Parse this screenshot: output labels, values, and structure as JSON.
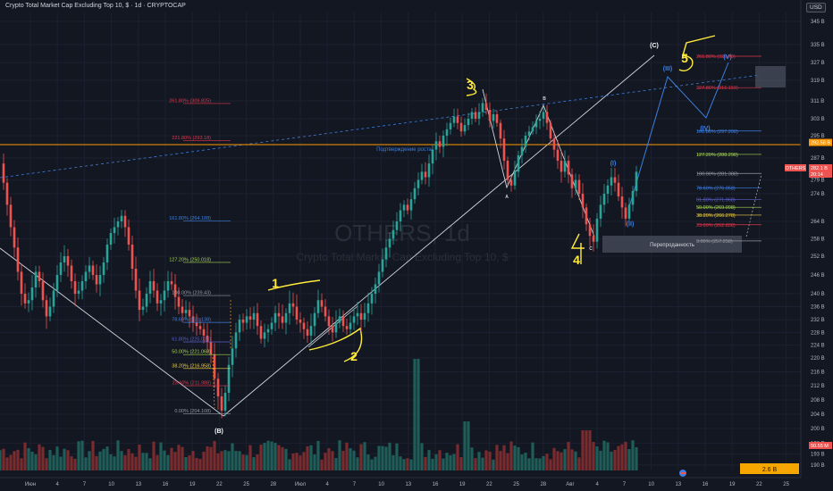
{
  "header": {
    "title": "Crypto Total Market Cap Excluding Top 10, $ · 1d · CRYPTOCAP",
    "currency": "USD"
  },
  "watermark": {
    "ticker": "OTHERS, 1d",
    "name": "Crypto Total Market Cap Excluding Top 10, $"
  },
  "colors": {
    "background": "#131722",
    "up": "#26a69a",
    "down": "#ef5350",
    "wave_blue": "#3d7fe0",
    "fib_red": "#e0364a",
    "fib_orange": "#ff9800",
    "fib_green": "#a5d64f",
    "accent_box": "#ffc107"
  },
  "chart_data": {
    "type": "candlestick",
    "price_axis": {
      "ticks": [
        "345 B",
        "335 B",
        "327 B",
        "319 B",
        "311 B",
        "303 B",
        "295 B",
        "287 B",
        "279 B",
        "274 B",
        "264 B",
        "258 B",
        "252 B",
        "246 B",
        "240 B",
        "236 B",
        "232 B",
        "228 B",
        "224 B",
        "220 B",
        "216 B",
        "212 B",
        "208 B",
        "204 B",
        "200 B",
        "196 B",
        "193 B",
        "190 B"
      ],
      "badges": [
        {
          "label": "292.58 B",
          "value": 292.58,
          "color": "#ff9800"
        },
        {
          "label": "OTHERS",
          "value": 282.5,
          "color": "#ef5350"
        },
        {
          "label": "282.1 B",
          "value": 282.1,
          "color": "#ef5350"
        },
        {
          "label": "20:14",
          "value": 281.4,
          "color": "#ef5350"
        }
      ]
    },
    "time_axis": {
      "ticks": [
        "Июн",
        "4",
        "7",
        "10",
        "13",
        "16",
        "19",
        "22",
        "25",
        "28",
        "Июл",
        "4",
        "7",
        "10",
        "13",
        "16",
        "19",
        "22",
        "25",
        "28",
        "Авг",
        "4",
        "7",
        "10",
        "13",
        "16",
        "19",
        "22",
        "25"
      ]
    },
    "volume": {
      "last": "50.55 M",
      "scale_label": "2.6 B"
    },
    "wave_labels": [
      "(B)",
      "(C)",
      "(I)",
      "(II)",
      "(III)",
      "(IV)",
      "(V)",
      "A",
      "B",
      "C",
      "1",
      "2",
      "3",
      "4",
      "5"
    ],
    "annotations": {
      "growth_confirm": "Подтверждение роста",
      "oversold": "Перепроданность"
    },
    "fib_left": [
      {
        "label": "261.80% (309.825)",
        "value": 309.825,
        "color": "fib_red"
      },
      {
        "label": "221.80% (293.18)",
        "value": 293.18,
        "color": "fib_red"
      },
      {
        "label": "161.80% (264.188)",
        "value": 264.188,
        "color": "wave_blue"
      },
      {
        "label": "127.20% (250.018)",
        "value": 250.018,
        "color": "fib_green"
      },
      {
        "label": "100.00% (239.43)",
        "value": 239.43,
        "color": "#9598a1"
      },
      {
        "label": "78.60% (231.138)",
        "value": 231.138,
        "color": "wave_blue"
      },
      {
        "label": "61.80% (225.028)",
        "value": 225.028,
        "color": "#5b5fc7"
      },
      {
        "label": "50.00% (221.068)",
        "value": 221.068,
        "color": "fib_green"
      },
      {
        "label": "38.20% (216.958)",
        "value": 216.958,
        "color": "#f0d040"
      },
      {
        "label": "23.60% (211.988)",
        "value": 211.988,
        "color": "fib_red"
      },
      {
        "label": "0.00% (204.108)",
        "value": 204.108,
        "color": "#9598a1"
      }
    ],
    "fib_right": [
      {
        "label": "261.80% (329.79)",
        "value": 329.79,
        "color": "fib_red"
      },
      {
        "label": "227.80% (316.159)",
        "value": 316.159,
        "color": "fib_red"
      },
      {
        "label": "161.80% (297.208)",
        "value": 297.208,
        "color": "wave_blue"
      },
      {
        "label": "127.20% (288.298)",
        "value": 288.298,
        "color": "fib_green"
      },
      {
        "label": "100.00% (281.388)",
        "value": 281.388,
        "color": "#9598a1"
      },
      {
        "label": "78.60% (276.058)",
        "value": 276.058,
        "color": "wave_blue"
      },
      {
        "label": "61.80% (271.968)",
        "value": 271.968,
        "color": "#5b5fc7"
      },
      {
        "label": "50.00% (269.098)",
        "value": 269.098,
        "color": "fib_green"
      },
      {
        "label": "38.20% (266.278)",
        "value": 266.278,
        "color": "#f0d040"
      },
      {
        "label": "23.60% (262.838)",
        "value": 262.838,
        "color": "fib_red"
      },
      {
        "label": "0.00% (257.258)",
        "value": 257.258,
        "color": "#9598a1"
      }
    ],
    "price_path": [
      [
        0,
        285
      ],
      [
        4,
        278
      ],
      [
        8,
        270
      ],
      [
        12,
        262
      ],
      [
        16,
        255
      ],
      [
        20,
        247
      ],
      [
        24,
        240
      ],
      [
        28,
        237
      ],
      [
        32,
        238
      ],
      [
        36,
        242
      ],
      [
        40,
        247
      ],
      [
        44,
        244
      ],
      [
        48,
        238
      ],
      [
        52,
        233
      ],
      [
        56,
        236
      ],
      [
        60,
        241
      ],
      [
        64,
        246
      ],
      [
        68,
        250
      ],
      [
        72,
        252
      ],
      [
        76,
        249
      ],
      [
        80,
        244
      ],
      [
        84,
        240
      ],
      [
        88,
        241
      ],
      [
        92,
        244
      ],
      [
        96,
        247
      ],
      [
        100,
        249
      ],
      [
        104,
        246
      ],
      [
        108,
        243
      ],
      [
        112,
        246
      ],
      [
        116,
        250
      ],
      [
        120,
        256
      ],
      [
        124,
        260
      ],
      [
        128,
        262
      ],
      [
        132,
        264
      ],
      [
        136,
        266
      ],
      [
        140,
        262
      ],
      [
        144,
        256
      ],
      [
        148,
        248
      ],
      [
        152,
        241
      ],
      [
        156,
        235
      ],
      [
        160,
        236
      ],
      [
        164,
        240
      ],
      [
        168,
        244
      ],
      [
        172,
        241
      ],
      [
        176,
        237
      ],
      [
        180,
        238
      ],
      [
        184,
        241
      ],
      [
        188,
        244
      ],
      [
        192,
        243
      ],
      [
        196,
        239
      ],
      [
        200,
        236
      ],
      [
        204,
        234
      ],
      [
        208,
        235
      ],
      [
        212,
        233
      ],
      [
        216,
        231
      ],
      [
        220,
        230
      ],
      [
        224,
        229
      ],
      [
        228,
        227
      ],
      [
        232,
        225
      ],
      [
        236,
        221
      ],
      [
        240,
        214
      ],
      [
        244,
        209
      ],
      [
        248,
        205
      ],
      [
        252,
        210
      ],
      [
        256,
        218
      ],
      [
        260,
        223
      ],
      [
        264,
        228
      ],
      [
        268,
        232
      ],
      [
        272,
        231
      ],
      [
        276,
        233
      ],
      [
        280,
        232
      ],
      [
        284,
        234
      ],
      [
        288,
        230
      ],
      [
        292,
        226
      ],
      [
        296,
        228
      ],
      [
        300,
        229
      ],
      [
        304,
        231
      ],
      [
        308,
        234
      ],
      [
        312,
        233
      ],
      [
        316,
        231
      ],
      [
        320,
        234
      ],
      [
        324,
        237
      ],
      [
        328,
        236
      ],
      [
        332,
        232
      ],
      [
        336,
        231
      ],
      [
        340,
        229
      ],
      [
        344,
        227
      ],
      [
        348,
        230
      ],
      [
        352,
        234
      ],
      [
        356,
        238
      ],
      [
        360,
        236
      ],
      [
        364,
        233
      ],
      [
        368,
        230
      ],
      [
        372,
        228
      ],
      [
        376,
        231
      ],
      [
        380,
        233
      ],
      [
        384,
        230
      ],
      [
        388,
        229
      ],
      [
        392,
        231
      ],
      [
        396,
        233
      ],
      [
        400,
        234
      ],
      [
        404,
        232
      ],
      [
        408,
        234
      ],
      [
        412,
        237
      ],
      [
        416,
        240
      ],
      [
        420,
        243
      ],
      [
        424,
        247
      ],
      [
        428,
        251
      ],
      [
        432,
        255
      ],
      [
        436,
        258
      ],
      [
        440,
        261
      ],
      [
        444,
        264
      ],
      [
        448,
        268
      ],
      [
        452,
        270
      ],
      [
        456,
        268
      ],
      [
        460,
        272
      ],
      [
        464,
        276
      ],
      [
        468,
        279
      ],
      [
        472,
        282
      ],
      [
        476,
        280
      ],
      [
        480,
        285
      ],
      [
        484,
        290
      ],
      [
        488,
        293
      ],
      [
        492,
        291
      ],
      [
        496,
        295
      ],
      [
        500,
        298
      ],
      [
        504,
        301
      ],
      [
        508,
        304
      ],
      [
        512,
        301
      ],
      [
        516,
        297
      ],
      [
        520,
        300
      ],
      [
        524,
        303
      ],
      [
        528,
        306
      ],
      [
        532,
        303
      ],
      [
        536,
        306
      ],
      [
        540,
        310
      ],
      [
        544,
        307
      ],
      [
        548,
        302
      ],
      [
        552,
        305
      ],
      [
        556,
        301
      ],
      [
        560,
        294
      ],
      [
        564,
        286
      ],
      [
        568,
        279
      ],
      [
        572,
        277
      ],
      [
        576,
        282
      ],
      [
        580,
        288
      ],
      [
        584,
        291
      ],
      [
        588,
        295
      ],
      [
        592,
        297
      ],
      [
        596,
        299
      ],
      [
        600,
        302
      ],
      [
        604,
        303
      ],
      [
        608,
        306
      ],
      [
        612,
        301
      ],
      [
        616,
        294
      ],
      [
        620,
        290
      ],
      [
        624,
        286
      ],
      [
        628,
        282
      ],
      [
        632,
        286
      ],
      [
        636,
        281
      ],
      [
        640,
        276
      ],
      [
        644,
        279
      ],
      [
        648,
        274
      ],
      [
        652,
        269
      ],
      [
        656,
        263
      ],
      [
        660,
        259
      ],
      [
        664,
        257
      ],
      [
        668,
        265
      ],
      [
        672,
        270
      ],
      [
        676,
        274
      ],
      [
        680,
        277
      ],
      [
        684,
        280
      ],
      [
        688,
        278
      ],
      [
        692,
        273
      ],
      [
        696,
        269
      ],
      [
        700,
        265
      ],
      [
        704,
        270
      ],
      [
        708,
        275
      ],
      [
        712,
        282
      ]
    ]
  }
}
